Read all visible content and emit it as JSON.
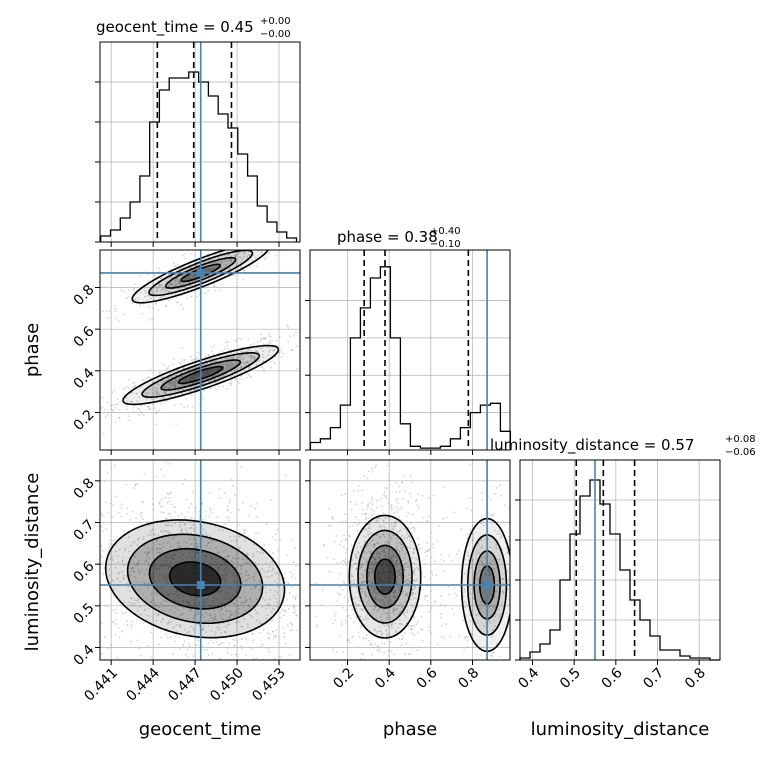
{
  "chart_data": {
    "type": "corner",
    "parameters": [
      "geocent_time",
      "phase",
      "luminosity_distance"
    ],
    "colors": {
      "truth": "#4682b4",
      "hist": "#000000",
      "grid": "#b0b0b0",
      "points": "#a0a0a0"
    },
    "grid": true,
    "titles": {
      "geocent_time": {
        "prefix": "geocent_time = 0.45",
        "upper": "+0.00",
        "lower": "−0.00"
      },
      "phase": {
        "prefix": "phase = 0.38",
        "upper": "+0.40",
        "lower": "−0.10"
      },
      "luminosity_distance": {
        "prefix": "luminosity_distance = 0.57",
        "upper": "+0.08",
        "lower": "−0.06"
      }
    },
    "axes": {
      "geocent_time": {
        "label": "geocent_time",
        "range": [
          0.4402,
          0.4545
        ],
        "ticks": [
          0.441,
          0.444,
          0.447,
          0.45,
          0.453
        ],
        "tick_labels": [
          "0.441",
          "0.444",
          "0.447",
          "0.450",
          "0.453"
        ]
      },
      "phase": {
        "label": "phase",
        "range": [
          0.02,
          0.98
        ],
        "ticks": [
          0.2,
          0.4,
          0.6,
          0.8
        ],
        "tick_labels": [
          "0.2",
          "0.4",
          "0.6",
          "0.8"
        ]
      },
      "luminosity_distance": {
        "label": "luminosity_distance",
        "range": [
          0.37,
          0.85
        ],
        "ticks": [
          0.4,
          0.5,
          0.6,
          0.7,
          0.8
        ],
        "tick_labels": [
          "0.4",
          "0.5",
          "0.6",
          "0.7",
          "0.8"
        ]
      }
    },
    "truths": {
      "geocent_time": 0.4474,
      "phase": 0.87,
      "luminosity_distance": 0.55
    },
    "quantiles": {
      "geocent_time": [
        0.4443,
        0.4469,
        0.4496
      ],
      "phase": [
        0.28,
        0.38,
        0.78
      ],
      "luminosity_distance": [
        0.505,
        0.57,
        0.645
      ]
    },
    "histograms": {
      "geocent_time": {
        "x": [
          0.4406,
          0.4413,
          0.442,
          0.4427,
          0.4434,
          0.4441,
          0.4448,
          0.4455,
          0.4462,
          0.4469,
          0.4476,
          0.4483,
          0.449,
          0.4497,
          0.4504,
          0.4511,
          0.4518,
          0.4525,
          0.4532,
          0.4539
        ],
        "counts": [
          0.03,
          0.06,
          0.12,
          0.2,
          0.33,
          0.6,
          0.76,
          0.82,
          0.82,
          0.85,
          0.8,
          0.73,
          0.64,
          0.57,
          0.44,
          0.33,
          0.18,
          0.1,
          0.05,
          0.02
        ]
      },
      "phase": {
        "x": [
          0.046,
          0.094,
          0.142,
          0.19,
          0.238,
          0.286,
          0.334,
          0.382,
          0.43,
          0.478,
          0.526,
          0.574,
          0.622,
          0.67,
          0.718,
          0.766,
          0.814,
          0.862,
          0.91,
          0.958
        ],
        "counts": [
          0.04,
          0.06,
          0.12,
          0.24,
          0.6,
          0.76,
          0.92,
          0.98,
          0.6,
          0.14,
          0.02,
          0.01,
          0.01,
          0.02,
          0.06,
          0.12,
          0.2,
          0.24,
          0.25,
          0.1
        ]
      },
      "luminosity_distance": {
        "x": [
          0.382,
          0.406,
          0.43,
          0.454,
          0.478,
          0.502,
          0.526,
          0.55,
          0.574,
          0.598,
          0.622,
          0.646,
          0.67,
          0.694,
          0.718,
          0.742,
          0.766,
          0.79,
          0.814,
          0.838
        ],
        "counts": [
          0.01,
          0.04,
          0.08,
          0.15,
          0.4,
          0.63,
          0.82,
          0.9,
          0.78,
          0.63,
          0.45,
          0.3,
          0.2,
          0.12,
          0.05,
          0.05,
          0.02,
          0.01,
          0.01,
          0.0
        ]
      }
    },
    "hist_ylim": {
      "geocent_time": [
        0,
        1.0
      ],
      "phase": [
        0,
        1.07
      ],
      "luminosity_distance": [
        0,
        1.0
      ]
    },
    "hist_ygrid": [
      0,
      0.2,
      0.4,
      0.6,
      0.8
    ],
    "samples": {
      "geocent_time_vs_phase": [
        {
          "x": 0.4474,
          "y": 0.38,
          "sx": 0.0018,
          "sy": 0.05,
          "w": 0.62,
          "corr": 0.82
        },
        {
          "x": 0.4474,
          "y": 0.87,
          "sx": 0.0016,
          "sy": 0.05,
          "w": 0.38,
          "corr": 0.85
        }
      ],
      "geocent_time_vs_luminosity_distance": [
        {
          "x": 0.447,
          "y": 0.565,
          "sx": 0.0024,
          "sy": 0.065,
          "w": 1.0,
          "corr": -0.25
        }
      ],
      "phase_vs_luminosity_distance": [
        {
          "x": 0.38,
          "y": 0.57,
          "sx": 0.07,
          "sy": 0.06,
          "w": 0.77,
          "corr": 0.0
        },
        {
          "x": 0.87,
          "y": 0.55,
          "sx": 0.05,
          "sy": 0.065,
          "w": 0.23,
          "corr": 0.0
        }
      ]
    },
    "contour_levels": [
      0.25,
      0.5,
      0.75,
      0.9
    ]
  }
}
